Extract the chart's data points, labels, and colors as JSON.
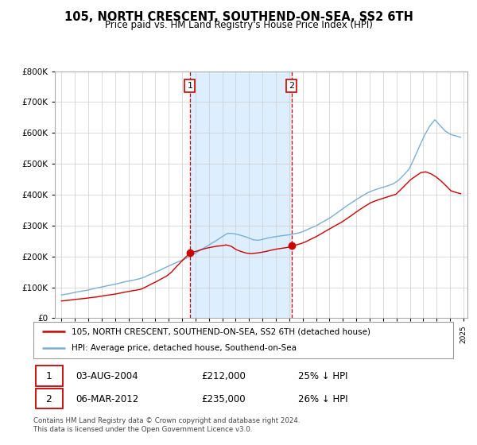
{
  "title": "105, NORTH CRESCENT, SOUTHEND-ON-SEA, SS2 6TH",
  "subtitle": "Price paid vs. HM Land Registry's House Price Index (HPI)",
  "legend_line1": "105, NORTH CRESCENT, SOUTHEND-ON-SEA, SS2 6TH (detached house)",
  "legend_line2": "HPI: Average price, detached house, Southend-on-Sea",
  "transaction1_date": "03-AUG-2004",
  "transaction1_price": "£212,000",
  "transaction1_hpi": "25% ↓ HPI",
  "transaction2_date": "06-MAR-2012",
  "transaction2_price": "£235,000",
  "transaction2_hpi": "26% ↓ HPI",
  "footer": "Contains HM Land Registry data © Crown copyright and database right 2024.\nThis data is licensed under the Open Government Licence v3.0.",
  "hpi_color": "#7aaed4",
  "price_color": "#cc0000",
  "vline_color": "#cc0000",
  "highlight_color": "#ddeeff",
  "ylim": [
    0,
    800000
  ],
  "yticks": [
    0,
    100000,
    200000,
    300000,
    400000,
    500000,
    600000,
    700000,
    800000
  ],
  "transaction1_year": 2004.58,
  "transaction2_year": 2012.17,
  "transaction1_value": 212000,
  "transaction2_value": 235000
}
